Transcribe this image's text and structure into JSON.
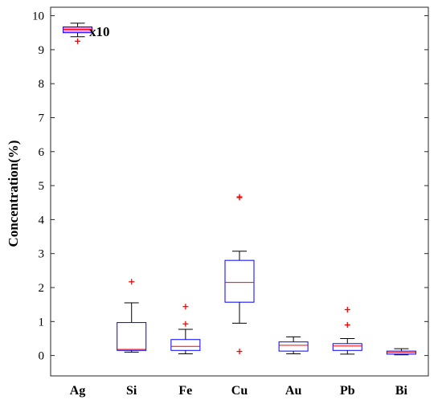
{
  "chart_data": {
    "type": "box",
    "ylabel": "Concentration(%)",
    "xlabel": "",
    "ylim": [
      -0.6,
      10.25
    ],
    "yticks": [
      0,
      1,
      2,
      3,
      4,
      5,
      6,
      7,
      8,
      9,
      10
    ],
    "grid": false,
    "annotation": "x10",
    "colors": {
      "box": "#0000ff",
      "median": "#ff0000",
      "whisker": "#000000",
      "outlier": "#ff0000",
      "ag_box_fill": "#dd66dd"
    },
    "boxes": [
      {
        "category": "Ag",
        "whisker_low": 9.38,
        "q1": 9.5,
        "median": 9.6,
        "q3": 9.67,
        "whisker_high": 9.78,
        "outliers": [
          9.25
        ]
      },
      {
        "category": "Si",
        "whisker_low": 0.1,
        "q1": 0.15,
        "median": 0.18,
        "q3": 0.97,
        "whisker_high": 1.55,
        "outliers": [
          2.17
        ]
      },
      {
        "category": "Fe",
        "whisker_low": 0.05,
        "q1": 0.15,
        "median": 0.27,
        "q3": 0.47,
        "whisker_high": 0.77,
        "outliers": [
          0.93,
          1.44
        ]
      },
      {
        "category": "Cu",
        "whisker_low": 0.95,
        "q1": 1.57,
        "median": 2.15,
        "q3": 2.8,
        "whisker_high": 3.07,
        "outliers": [
          0.12,
          4.65,
          4.67
        ]
      },
      {
        "category": "Au",
        "whisker_low": 0.05,
        "q1": 0.13,
        "median": 0.3,
        "q3": 0.4,
        "whisker_high": 0.55,
        "outliers": []
      },
      {
        "category": "Pb",
        "whisker_low": 0.04,
        "q1": 0.15,
        "median": 0.28,
        "q3": 0.35,
        "whisker_high": 0.5,
        "outliers": [
          0.9,
          1.35
        ]
      },
      {
        "category": "Bi",
        "whisker_low": 0.02,
        "q1": 0.04,
        "median": 0.09,
        "q3": 0.13,
        "whisker_high": 0.2,
        "outliers": []
      }
    ]
  }
}
